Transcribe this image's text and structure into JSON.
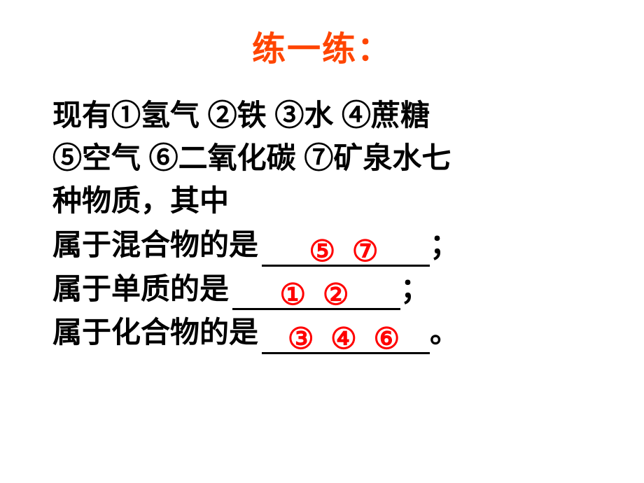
{
  "slide": {
    "title": "练一练：",
    "title_color": "#ff4500",
    "title_fontsize": 48,
    "body_fontsize": 42,
    "body_color": "#000000",
    "answer_color": "#ff0000",
    "background_color": "#ffffff",
    "question_line1": "现有①氢气 ②铁 ③水 ④蔗糖",
    "question_line2": "⑤空气 ⑥二氧化碳 ⑦矿泉水七",
    "question_line3": "种物质，其中",
    "answers": [
      {
        "prompt": "属于混合物的是",
        "answer": "⑤ ⑦",
        "punctuation": "；"
      },
      {
        "prompt": "属于单质的是",
        "answer": "① ②",
        "punctuation": "；"
      },
      {
        "prompt": "属于化合物的是",
        "answer": "③ ④ ⑥",
        "punctuation": "。"
      }
    ]
  }
}
